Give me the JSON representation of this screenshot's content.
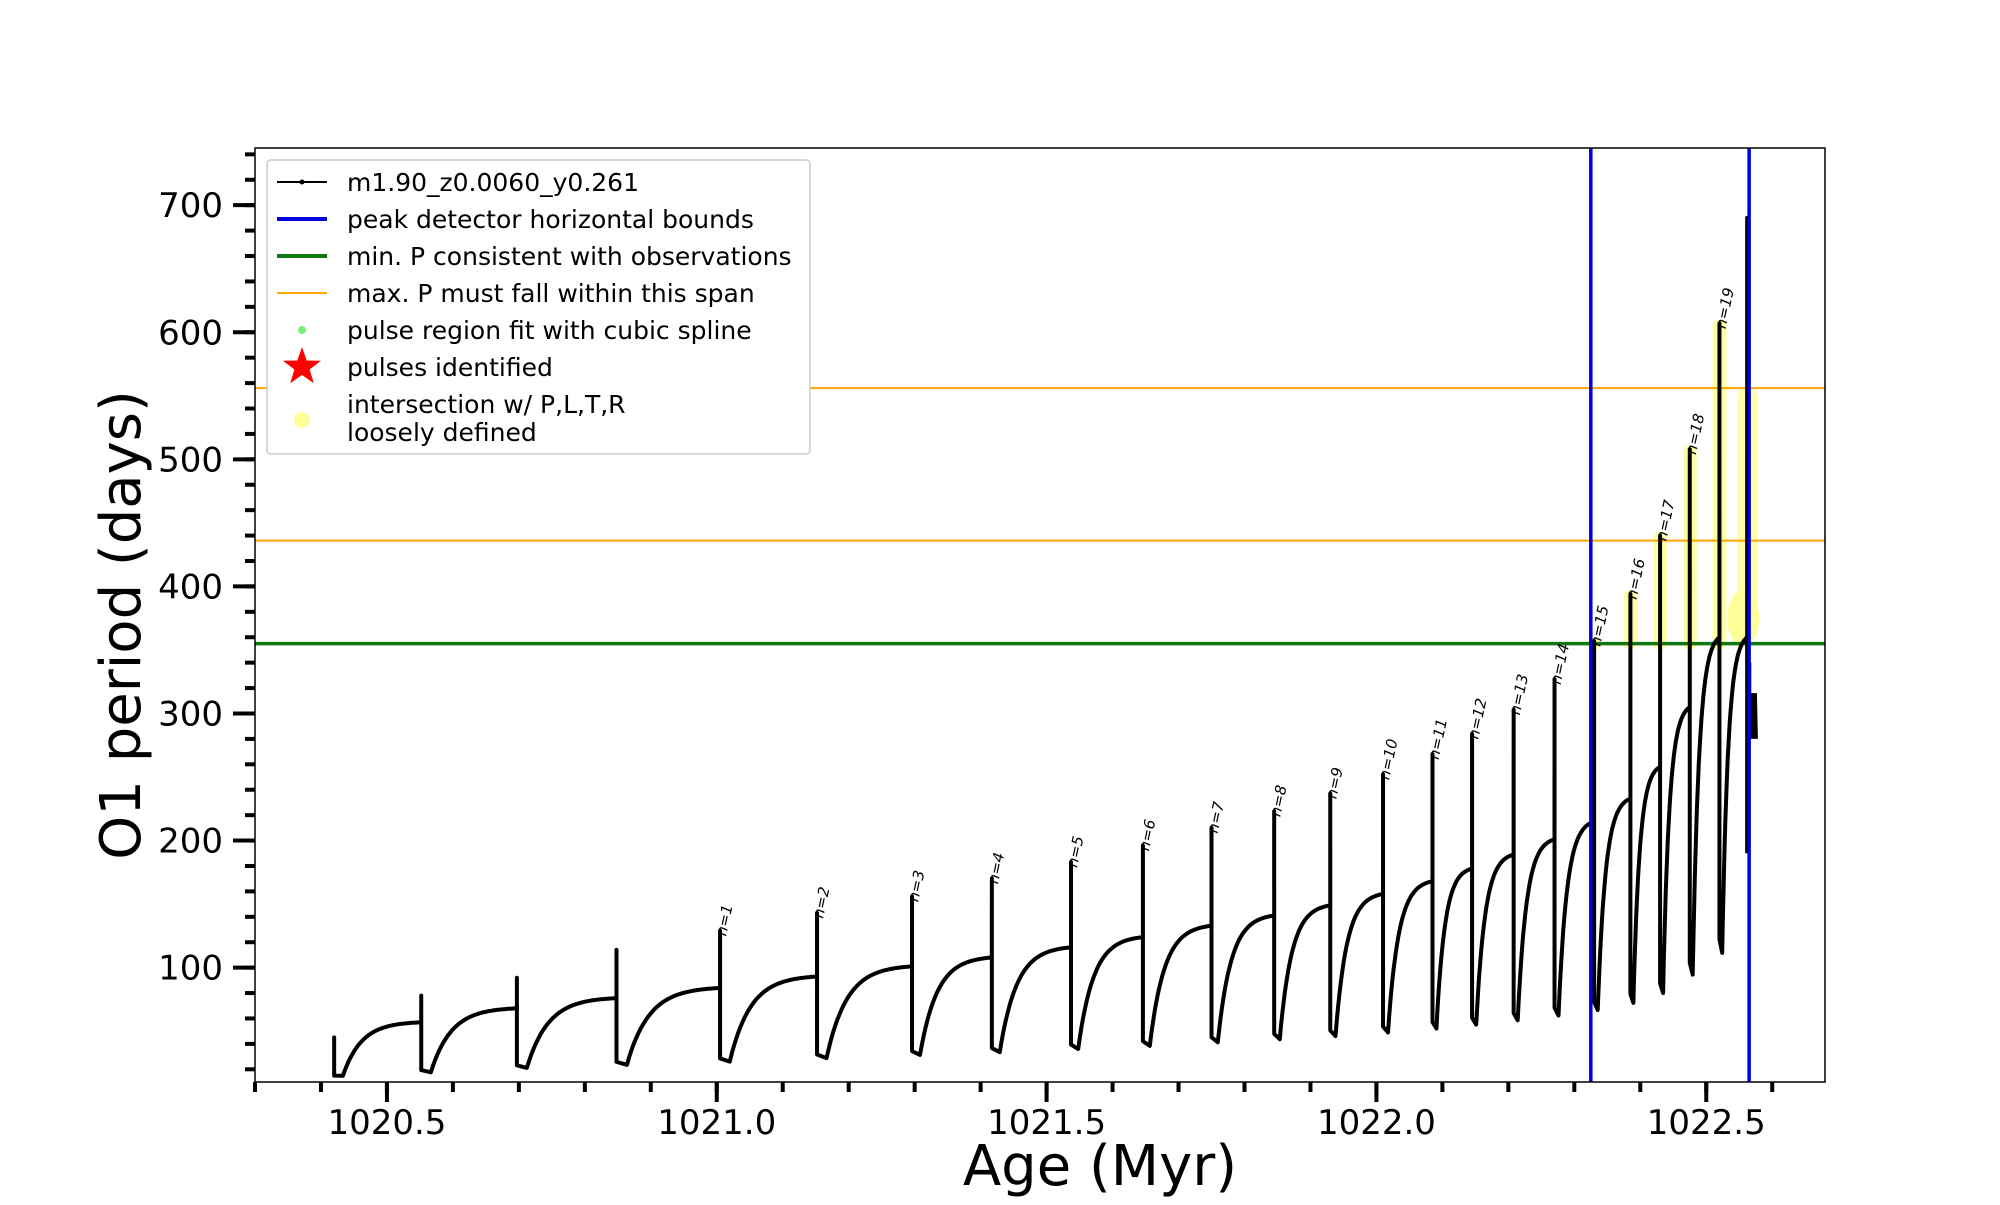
{
  "chart_data": {
    "type": "line",
    "xlabel": "Age (Myr)",
    "ylabel": "O1 period (days)",
    "xlim": [
      1020.3,
      1022.68
    ],
    "ylim": [
      10,
      745
    ],
    "x_ticks": [
      1020.5,
      1021.0,
      1021.5,
      1022.0,
      1022.5
    ],
    "x_tick_labels": [
      "1020.5",
      "1021.0",
      "1021.5",
      "1022.0",
      "1022.5"
    ],
    "x_minor_step": 0.1,
    "y_ticks": [
      100,
      200,
      300,
      400,
      500,
      600,
      700
    ],
    "y_tick_labels": [
      "100",
      "200",
      "300",
      "400",
      "500",
      "600",
      "700"
    ],
    "y_minor_step": 20,
    "grid": false,
    "legend_position": "top-left",
    "legend": [
      {
        "label": "m1.90_z0.0060_y0.261",
        "kind": "line-marker",
        "color": "#000000"
      },
      {
        "label": "peak detector horizontal bounds",
        "kind": "line",
        "color": "#0000dd"
      },
      {
        "label": "min. P consistent with observations",
        "kind": "line",
        "color": "#117711"
      },
      {
        "label": "max. P must fall within this span",
        "kind": "line",
        "color": "#ffa500"
      },
      {
        "label": "pulse region fit with cubic spline",
        "kind": "dot",
        "color": "#77ee77"
      },
      {
        "label": "pulses identified",
        "kind": "star",
        "color": "#ff0000"
      },
      {
        "label": "intersection w/ P,L,T,R",
        "label2": "loosely defined",
        "kind": "dot-big",
        "color": "#ffff99"
      }
    ],
    "vertical_lines": [
      {
        "x": 1022.325,
        "color": "#0000dd"
      },
      {
        "x": 1022.565,
        "color": "#0000dd"
      }
    ],
    "horizontal_lines": [
      {
        "y": 355,
        "color": "#117711",
        "role": "min"
      },
      {
        "y": 436,
        "color": "#ffa500",
        "role": "span"
      },
      {
        "y": 556,
        "color": "#ffa500",
        "role": "span"
      }
    ],
    "pulses": [
      {
        "label": "",
        "x": 1020.42,
        "peak": 45,
        "base": 48
      },
      {
        "label": "",
        "x": 1020.552,
        "peak": 78,
        "base": 57
      },
      {
        "label": "",
        "x": 1020.697,
        "peak": 92,
        "base": 68
      },
      {
        "label": "",
        "x": 1020.848,
        "peak": 114,
        "base": 76
      },
      {
        "label": "n=1",
        "x": 1021.005,
        "peak": 129,
        "base": 84
      },
      {
        "label": "n=2",
        "x": 1021.152,
        "peak": 143,
        "base": 93
      },
      {
        "label": "n=3",
        "x": 1021.296,
        "peak": 156,
        "base": 101
      },
      {
        "label": "n=4",
        "x": 1021.417,
        "peak": 170,
        "base": 108
      },
      {
        "label": "n=5",
        "x": 1021.537,
        "peak": 183,
        "base": 116
      },
      {
        "label": "n=6",
        "x": 1021.646,
        "peak": 196,
        "base": 124
      },
      {
        "label": "n=7",
        "x": 1021.75,
        "peak": 210,
        "base": 133
      },
      {
        "label": "n=8",
        "x": 1021.845,
        "peak": 223,
        "base": 141
      },
      {
        "label": "n=9",
        "x": 1021.93,
        "peak": 237,
        "base": 149
      },
      {
        "label": "n=10",
        "x": 1022.01,
        "peak": 252,
        "base": 158
      },
      {
        "label": "n=11",
        "x": 1022.085,
        "peak": 268,
        "base": 168
      },
      {
        "label": "n=12",
        "x": 1022.145,
        "peak": 284,
        "base": 178
      },
      {
        "label": "n=13",
        "x": 1022.208,
        "peak": 303,
        "base": 189
      },
      {
        "label": "n=14",
        "x": 1022.27,
        "peak": 327,
        "base": 201
      },
      {
        "label": "n=15",
        "x": 1022.33,
        "peak": 357,
        "base": 215
      },
      {
        "label": "n=16",
        "x": 1022.385,
        "peak": 394,
        "base": 233
      },
      {
        "label": "n=17",
        "x": 1022.43,
        "peak": 440,
        "base": 258
      },
      {
        "label": "n=18",
        "x": 1022.475,
        "peak": 508,
        "base": 305
      },
      {
        "label": "n=19",
        "x": 1022.52,
        "peak": 607,
        "base": 360
      }
    ],
    "final_spike": {
      "x": 1022.562,
      "peak": 690,
      "low": 190
    },
    "tail": {
      "x_start": 1022.566,
      "x_end": 1022.576,
      "values": [
        340,
        280
      ]
    }
  }
}
